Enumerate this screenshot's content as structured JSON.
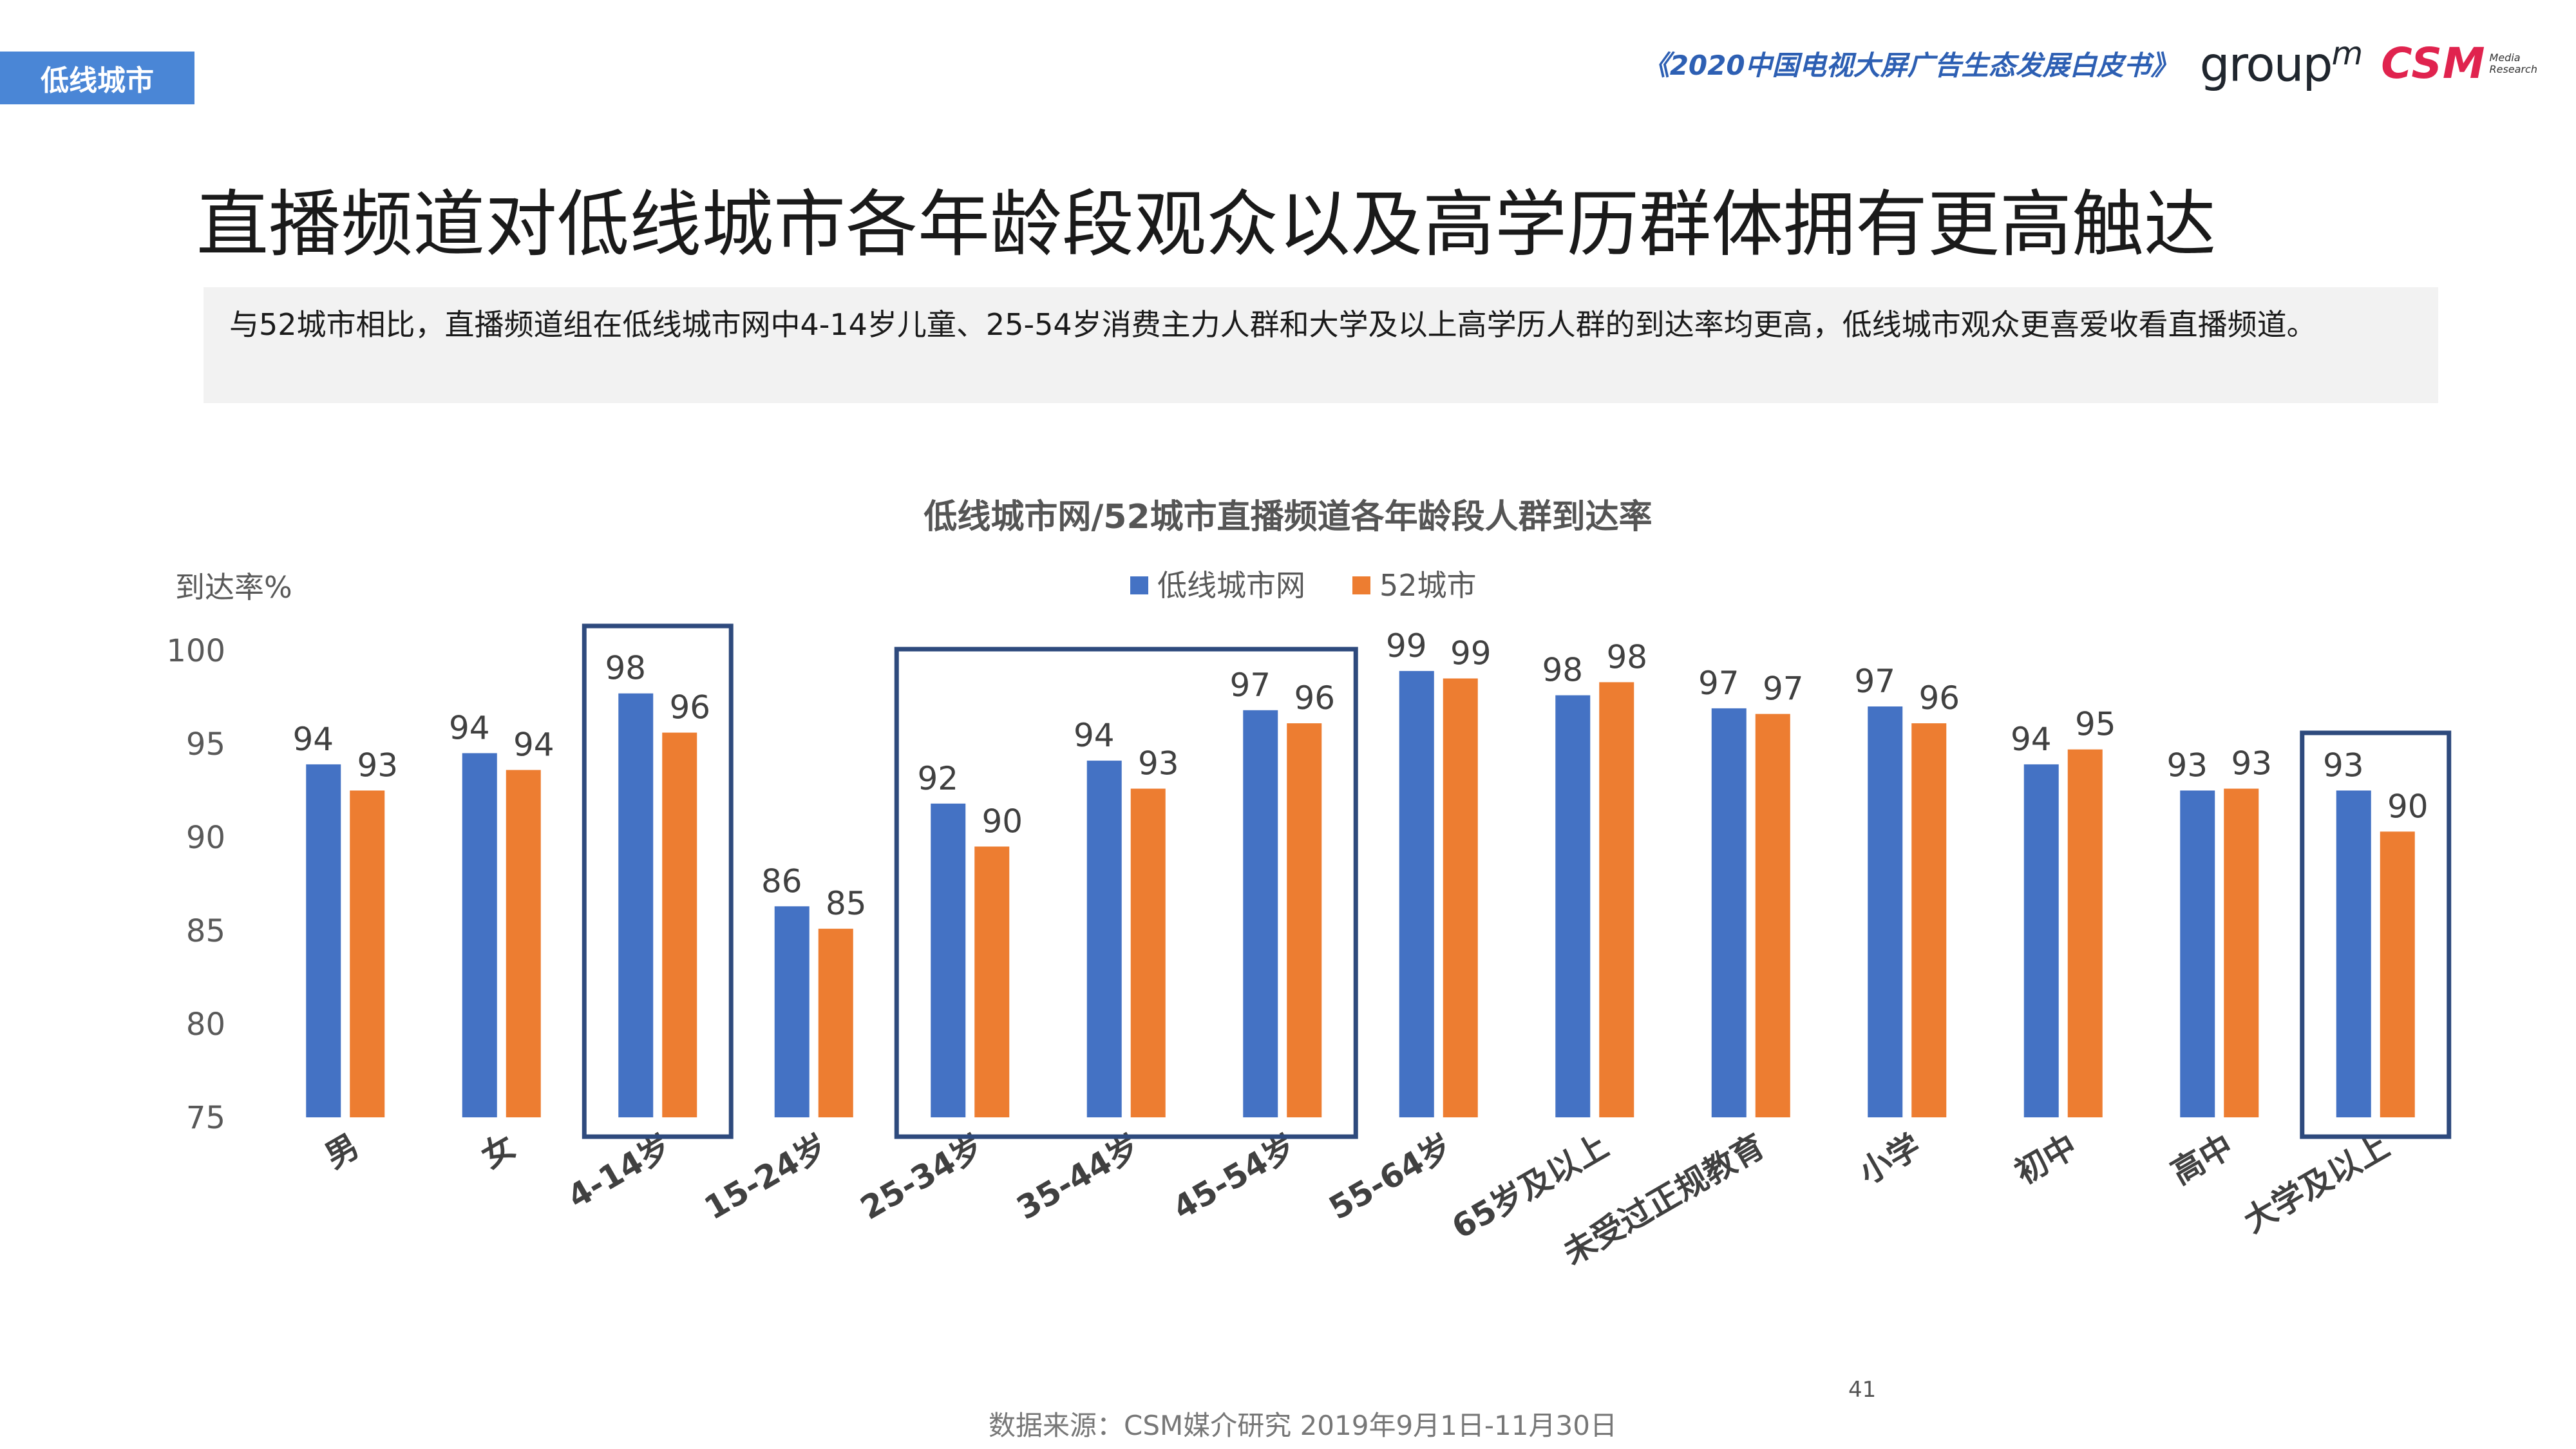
{
  "section_tag": "低线城市",
  "header": {
    "report_title": "《2020中国电视大屏广告生态发展白皮书》",
    "groupm_text": "group",
    "groupm_mark": "m",
    "csm_text": "CSM",
    "csm_sub_1": "Media",
    "csm_sub_2": "Research"
  },
  "main_title": "直播频道对低线城市各年龄段观众以及高学历群体拥有更高触达",
  "summary": "与52城市相比，直播频道组在低线城市网中4-14岁儿童、25-54岁消费主力人群和大学及以上高学历人群的到达率均更高，低线城市观众更喜爱收看直播频道。",
  "chart_data": {
    "type": "bar",
    "title": "低线城市网/52城市直播频道各年龄段人群到达率",
    "ylabel": "到达率%",
    "xlabel": "",
    "ylim": [
      75,
      100
    ],
    "yticks": [
      "100",
      "95",
      "90",
      "85",
      "80",
      "75"
    ],
    "grid": false,
    "legend_position": "top",
    "categories": [
      "男",
      "女",
      "4-14岁",
      "15-24岁",
      "25-34岁",
      "35-44岁",
      "45-54岁",
      "55-64岁",
      "65岁及以上",
      "未受过正规教育",
      "小学",
      "初中",
      "高中",
      "大学及以上"
    ],
    "series": [
      {
        "name": "低线城市网",
        "color": "#4472c4",
        "values": [
          93.9,
          94.5,
          97.7,
          86.3,
          91.8,
          94.1,
          96.8,
          98.9,
          97.6,
          96.9,
          97.0,
          93.9,
          92.5,
          92.5
        ],
        "labels": [
          "94",
          "94",
          "98",
          "86",
          "92",
          "94",
          "97",
          "99",
          "98",
          "97",
          "97",
          "94",
          "93",
          "93"
        ]
      },
      {
        "name": "52城市",
        "color": "#ed7d31",
        "values": [
          92.5,
          93.6,
          95.6,
          85.1,
          89.5,
          92.6,
          96.1,
          98.5,
          98.3,
          96.6,
          96.1,
          94.7,
          92.6,
          90.3
        ],
        "labels": [
          "93",
          "94",
          "96",
          "85",
          "90",
          "93",
          "96",
          "99",
          "98",
          "97",
          "96",
          "95",
          "93",
          "90"
        ]
      }
    ],
    "highlight_groups": [
      [
        "4-14岁"
      ],
      [
        "25-34岁",
        "35-44岁",
        "45-54岁"
      ],
      [
        "大学及以上"
      ]
    ],
    "highlight_color": "#2e4a7d"
  },
  "source": "数据来源：CSM媒介研究  2019年9月1日-11月30日",
  "page_number": "41"
}
